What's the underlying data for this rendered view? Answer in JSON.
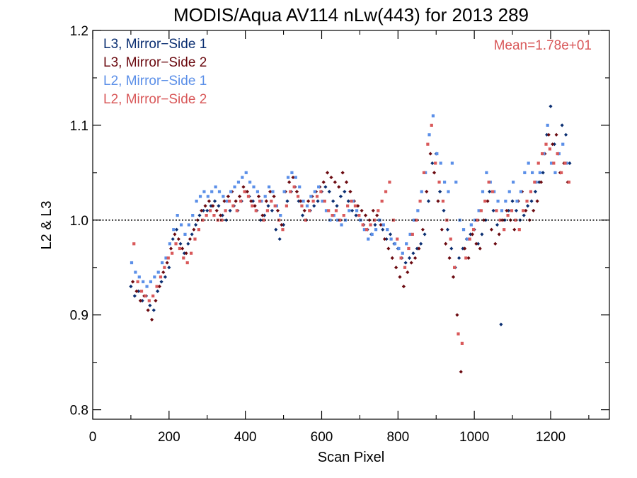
{
  "chart_data": {
    "type": "scatter",
    "title": "MODIS/Aqua AV114 nLw(443) for 2013 289",
    "xlabel": "Scan Pixel",
    "ylabel": "L2 & L3",
    "xlim": [
      0,
      1354
    ],
    "ylim": [
      0.79,
      1.2
    ],
    "xticks": [
      0,
      200,
      400,
      600,
      800,
      1000,
      1200
    ],
    "xtick_labels": [
      "0",
      "200",
      "400",
      "600",
      "800",
      "1000",
      "1200"
    ],
    "yticks": [
      0.8,
      0.9,
      1.0,
      1.1,
      1.2
    ],
    "ytick_labels": [
      "0.8",
      "0.9",
      "1.0",
      "1.1",
      "1.2"
    ],
    "reference_line": 1.0,
    "annotation": "Mean=1.78e+01",
    "annotation_color": "#d9595a",
    "legend_position": "top-left",
    "grid": false,
    "series": [
      {
        "name": "L3, Mirror−Side 1",
        "color": "#0b2f72",
        "marker": "diamond",
        "x": [
          100,
          110,
          120,
          130,
          140,
          150,
          160,
          170,
          180,
          190,
          200,
          210,
          220,
          230,
          240,
          250,
          260,
          270,
          280,
          290,
          300,
          310,
          320,
          330,
          340,
          350,
          360,
          370,
          380,
          390,
          400,
          410,
          420,
          430,
          440,
          450,
          460,
          470,
          480,
          490,
          500,
          510,
          520,
          530,
          540,
          550,
          560,
          570,
          580,
          590,
          600,
          610,
          620,
          630,
          640,
          650,
          660,
          670,
          680,
          690,
          700,
          710,
          720,
          730,
          740,
          750,
          760,
          770,
          780,
          790,
          800,
          810,
          820,
          830,
          840,
          850,
          860,
          870,
          880,
          890,
          900,
          910,
          920,
          930,
          940,
          950,
          960,
          970,
          980,
          990,
          1000,
          1010,
          1020,
          1030,
          1040,
          1050,
          1060,
          1070,
          1080,
          1090,
          1100,
          1110,
          1120,
          1130,
          1140,
          1150,
          1160,
          1170,
          1180,
          1190,
          1200,
          1210,
          1220,
          1230,
          1240,
          1250
        ],
        "y": [
          0.93,
          0.92,
          0.925,
          0.915,
          0.92,
          0.91,
          0.905,
          0.925,
          0.935,
          0.94,
          0.95,
          0.98,
          0.99,
          0.975,
          0.965,
          0.975,
          0.985,
          0.995,
          1.005,
          1.01,
          1.01,
          1.015,
          1.02,
          1.015,
          1.005,
          1.0,
          1.01,
          1.015,
          1.01,
          1.02,
          1.03,
          1.025,
          1.02,
          1.01,
          1.0,
          1.005,
          1.015,
          1.01,
          0.99,
          0.98,
          0.995,
          1.02,
          1.03,
          1.035,
          1.02,
          1.005,
          1.0,
          1.01,
          1.015,
          1.02,
          1.03,
          1.035,
          1.03,
          1.02,
          1.015,
          1.025,
          1.03,
          1.02,
          1.01,
          1.005,
          1.0,
          0.995,
          0.99,
          0.985,
          0.995,
          1.0,
          0.99,
          0.98,
          0.985,
          0.975,
          0.97,
          0.96,
          0.955,
          0.96,
          0.965,
          0.97,
          0.975,
          0.985,
          1.02,
          1.06,
          1.07,
          1.03,
          1.01,
          0.99,
          0.97,
          0.95,
          0.96,
          0.97,
          0.98,
          0.985,
          0.99,
          0.975,
          0.985,
          1.0,
          1.03,
          1.01,
          0.995,
          0.89,
          1.0,
          1.01,
          1.02,
          1.01,
          1.0,
          1.005,
          1.015,
          1.02,
          1.03,
          1.04,
          1.05,
          1.09,
          1.12,
          1.08,
          1.07,
          1.1,
          1.09,
          1.06
        ]
      },
      {
        "name": "L3, Mirror−Side 2",
        "color": "#6b0a10",
        "marker": "diamond",
        "x": [
          105,
          115,
          125,
          135,
          145,
          155,
          165,
          175,
          185,
          195,
          205,
          215,
          225,
          235,
          245,
          255,
          265,
          275,
          285,
          295,
          305,
          315,
          325,
          335,
          345,
          355,
          365,
          375,
          385,
          395,
          405,
          415,
          425,
          435,
          445,
          455,
          465,
          475,
          485,
          495,
          505,
          515,
          525,
          535,
          545,
          555,
          565,
          575,
          585,
          595,
          605,
          615,
          625,
          635,
          645,
          655,
          665,
          675,
          685,
          695,
          705,
          715,
          725,
          735,
          745,
          755,
          765,
          775,
          785,
          795,
          805,
          815,
          825,
          835,
          845,
          855,
          865,
          875,
          885,
          895,
          905,
          915,
          925,
          935,
          945,
          955,
          965,
          975,
          985,
          995,
          1005,
          1015,
          1025,
          1035,
          1045,
          1055,
          1065,
          1075,
          1085,
          1095,
          1105,
          1115,
          1125,
          1135,
          1145,
          1155,
          1165,
          1175,
          1185,
          1195,
          1205,
          1215,
          1225,
          1235,
          1245
        ],
        "y": [
          0.935,
          0.925,
          0.915,
          0.92,
          0.905,
          0.895,
          0.915,
          0.93,
          0.945,
          0.955,
          0.97,
          0.985,
          0.98,
          0.97,
          0.965,
          0.98,
          0.99,
          1.0,
          1.01,
          1.015,
          1.02,
          1.015,
          1.01,
          1.005,
          1.02,
          1.025,
          1.03,
          1.02,
          1.025,
          1.035,
          1.03,
          1.02,
          1.015,
          1.025,
          1.005,
          1.02,
          1.03,
          1.025,
          1.01,
          0.995,
          1.03,
          1.04,
          1.045,
          1.03,
          1.02,
          1.01,
          1.02,
          1.025,
          1.03,
          1.035,
          1.04,
          1.05,
          1.045,
          1.04,
          1.035,
          1.05,
          1.04,
          1.03,
          1.02,
          1.015,
          1.01,
          1.005,
          1.0,
          1.01,
          1.005,
          0.995,
          0.98,
          0.97,
          0.96,
          0.95,
          0.94,
          0.93,
          0.945,
          0.955,
          0.96,
          0.97,
          0.99,
          1.03,
          1.07,
          1.05,
          1.02,
          0.99,
          0.975,
          0.96,
          0.94,
          0.9,
          0.84,
          0.97,
          0.96,
          0.985,
          0.975,
          0.97,
          1.0,
          1.02,
          0.99,
          0.975,
          0.985,
          1.0,
          1.01,
          1.0,
          0.99,
          1.02,
          1.03,
          1.01,
          1.0,
          1.01,
          1.02,
          1.04,
          1.07,
          1.09,
          1.08,
          1.09,
          1.05,
          1.06,
          1.04
        ]
      },
      {
        "name": "L2, Mirror−Side 1",
        "color": "#5b8fe8",
        "marker": "square",
        "x": [
          102,
          112,
          122,
          132,
          142,
          152,
          162,
          172,
          182,
          192,
          202,
          212,
          222,
          232,
          242,
          252,
          262,
          272,
          282,
          292,
          302,
          312,
          322,
          332,
          342,
          352,
          362,
          372,
          382,
          392,
          402,
          412,
          422,
          432,
          442,
          452,
          462,
          472,
          482,
          492,
          502,
          512,
          522,
          532,
          542,
          552,
          562,
          572,
          582,
          592,
          602,
          612,
          622,
          632,
          642,
          652,
          662,
          672,
          682,
          692,
          702,
          712,
          722,
          732,
          742,
          752,
          762,
          772,
          782,
          792,
          802,
          812,
          822,
          832,
          842,
          852,
          862,
          872,
          882,
          892,
          902,
          912,
          922,
          932,
          942,
          952,
          962,
          972,
          982,
          992,
          1002,
          1012,
          1022,
          1032,
          1042,
          1052,
          1062,
          1072,
          1082,
          1092,
          1102,
          1112,
          1122,
          1132,
          1142,
          1152,
          1162,
          1172,
          1182,
          1192,
          1202,
          1212,
          1222,
          1232,
          1242
        ],
        "y": [
          0.955,
          0.945,
          0.94,
          0.935,
          0.93,
          0.935,
          0.94,
          0.945,
          0.955,
          0.96,
          0.975,
          0.99,
          1.005,
          0.995,
          0.985,
          0.995,
          1.005,
          1.02,
          1.025,
          1.03,
          1.025,
          1.03,
          1.035,
          1.03,
          1.025,
          1.02,
          1.03,
          1.035,
          1.04,
          1.045,
          1.05,
          1.04,
          1.035,
          1.03,
          1.02,
          1.025,
          1.035,
          1.03,
          1.015,
          1.005,
          1.03,
          1.045,
          1.05,
          1.045,
          1.035,
          1.02,
          1.015,
          1.025,
          1.03,
          1.035,
          1.02,
          1.01,
          1.0,
          1.005,
          1.0,
          0.995,
          1.0,
          1.01,
          1.02,
          1.01,
          1.0,
          0.99,
          0.98,
          0.985,
          0.99,
          1.0,
          0.995,
          0.99,
          0.98,
          0.975,
          0.97,
          0.965,
          0.975,
          0.985,
          1.0,
          1.01,
          1.03,
          1.05,
          1.09,
          1.11,
          1.07,
          1.06,
          1.04,
          1.03,
          1.06,
          1.04,
          1.0,
          0.99,
          0.98,
          0.995,
          1.0,
          1.01,
          1.03,
          1.05,
          1.04,
          1.03,
          1.02,
          1.01,
          1.02,
          1.03,
          1.04,
          1.02,
          1.03,
          1.05,
          1.06,
          1.05,
          1.04,
          1.05,
          1.07,
          1.1,
          1.06,
          1.05,
          1.07,
          1.08,
          1.06
        ]
      },
      {
        "name": "L2, Mirror−Side 2",
        "color": "#d9595a",
        "marker": "square",
        "x": [
          108,
          118,
          128,
          138,
          148,
          158,
          168,
          178,
          188,
          198,
          208,
          218,
          228,
          238,
          248,
          258,
          268,
          278,
          288,
          298,
          308,
          318,
          328,
          338,
          348,
          358,
          368,
          378,
          388,
          398,
          408,
          418,
          428,
          438,
          448,
          458,
          468,
          478,
          488,
          498,
          508,
          518,
          528,
          538,
          548,
          558,
          568,
          578,
          588,
          598,
          608,
          618,
          628,
          638,
          648,
          658,
          668,
          678,
          688,
          698,
          708,
          718,
          728,
          738,
          748,
          758,
          768,
          778,
          788,
          798,
          808,
          818,
          828,
          838,
          848,
          858,
          868,
          878,
          888,
          898,
          908,
          918,
          928,
          938,
          948,
          958,
          968,
          978,
          988,
          998,
          1008,
          1018,
          1028,
          1038,
          1048,
          1058,
          1068,
          1078,
          1088,
          1098,
          1108,
          1118,
          1128,
          1138,
          1148,
          1158,
          1168,
          1178,
          1188,
          1198,
          1208,
          1218,
          1228,
          1238,
          1248
        ],
        "y": [
          0.975,
          0.935,
          0.925,
          0.92,
          0.915,
          0.92,
          0.93,
          0.94,
          0.95,
          0.96,
          0.965,
          0.975,
          0.97,
          0.96,
          0.955,
          0.965,
          0.98,
          0.99,
          1.0,
          1.005,
          1.01,
          1.005,
          1.0,
          1.0,
          1.01,
          1.02,
          1.015,
          1.01,
          1.02,
          1.03,
          1.025,
          1.015,
          1.01,
          1.02,
          1.0,
          1.01,
          1.02,
          1.015,
          1.0,
          0.99,
          1.015,
          1.03,
          1.035,
          1.025,
          1.015,
          1.0,
          1.01,
          1.02,
          1.025,
          1.03,
          1.02,
          1.01,
          1.005,
          1.01,
          1.0,
          1.005,
          1.015,
          1.02,
          1.015,
          1.005,
          0.995,
          0.99,
          0.995,
          1.0,
          1.01,
          1.02,
          1.03,
          1.04,
          1.0,
          0.98,
          0.96,
          0.95,
          0.97,
          0.985,
          1.0,
          1.02,
          1.05,
          1.08,
          1.1,
          1.06,
          1.04,
          1.02,
          1.0,
          0.98,
          0.95,
          0.88,
          0.87,
          0.96,
          0.98,
          0.99,
          1.0,
          1.01,
          1.02,
          1.04,
          1.03,
          1.01,
          1.0,
          0.99,
          1.005,
          1.01,
          1.0,
          0.99,
          1.01,
          1.02,
          1.03,
          1.04,
          1.06,
          1.07,
          1.08,
          1.075,
          1.06,
          1.07,
          1.05,
          1.06,
          1.04
        ]
      }
    ]
  }
}
